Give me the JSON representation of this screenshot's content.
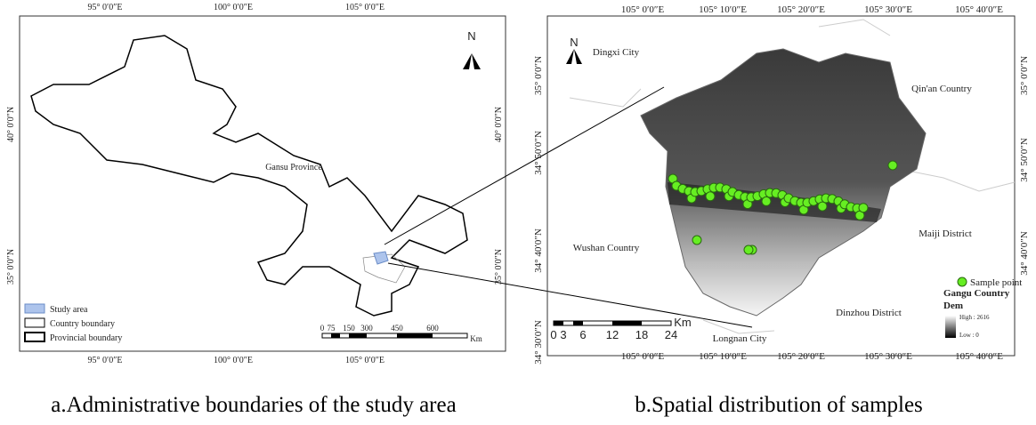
{
  "left_map": {
    "lon_top": [
      "95° 0′0″E",
      "100° 0′0″E",
      "105° 0′0″E"
    ],
    "lon_bottom": [
      "95° 0′0″E",
      "100° 0′0″E",
      "105° 0′0″E"
    ],
    "lat_left": [
      "40° 0′0″N",
      "35° 0′0″N"
    ],
    "lat_right": [
      "40° 0′0″N",
      "35° 0′0″N"
    ],
    "north": "N",
    "province_label": "Gansu Province",
    "legend": [
      "Study area",
      "Country boundary",
      "Provincial boundary"
    ],
    "scale": [
      "0",
      "75",
      "150",
      "300",
      "450",
      "600"
    ],
    "scale_unit": "Km",
    "caption": "a.Administrative boundaries of the study area"
  },
  "right_map": {
    "lon_top": [
      "105° 0′0″E",
      "105° 10′0″E",
      "105° 20′0″E",
      "105° 30′0″E",
      "105° 40′0″E"
    ],
    "lon_bottom": [
      "105° 0′0″E",
      "105° 10′0″E",
      "105° 20′0″E",
      "105° 30′0″E",
      "105° 40′0″E"
    ],
    "lat_left": [
      "35° 0′0″N",
      "34° 50′0″N",
      "34° 40′0″N",
      "34° 30′0″N"
    ],
    "lat_right": [
      "35° 0′0″N",
      "34° 50′0″N",
      "34° 40′0″N"
    ],
    "north": "N",
    "places": [
      "Dingxi City",
      "Qin'an Country",
      "Wushan Country",
      "Maiji District",
      "Dinzhou District",
      "Longnan City"
    ],
    "legend_point": "Sample point",
    "legend_title": "Gangu Country",
    "legend_dem": "Dem",
    "dem_high": "High : 2616",
    "dem_low": "Low : 0",
    "scale": [
      "0",
      "3",
      "6",
      "12",
      "18",
      "24"
    ],
    "scale_unit": "Km",
    "caption": "b.Spatial distribution of samples"
  }
}
